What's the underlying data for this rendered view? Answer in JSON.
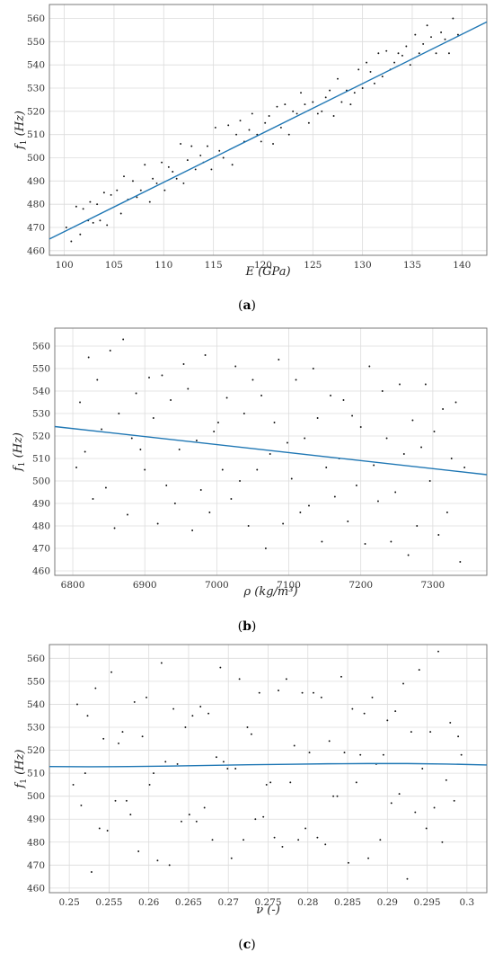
{
  "chart_data": [
    {
      "type": "scatter",
      "panel": "(a)",
      "panel_letter": "a",
      "xlabel_main": "E",
      "xlabel_unit": "(GPa)",
      "ylabel_main": "f",
      "ylabel_sub": "1",
      "ylabel_unit": "(Hz)",
      "xlim": [
        98.5,
        142.5
      ],
      "ylim": [
        458,
        566
      ],
      "xticks": [
        100,
        105,
        110,
        115,
        120,
        125,
        130,
        135,
        140
      ],
      "yticks": [
        460,
        470,
        480,
        490,
        500,
        510,
        520,
        530,
        540,
        550,
        560
      ],
      "grid": true,
      "points_x": [
        100.2,
        100.7,
        101.2,
        101.6,
        101.9,
        102.4,
        102.6,
        102.9,
        103.3,
        103.6,
        104.0,
        104.3,
        104.7,
        105.3,
        105.7,
        106.0,
        106.4,
        106.9,
        107.3,
        107.7,
        108.1,
        108.6,
        108.9,
        109.3,
        109.8,
        110.1,
        110.5,
        110.9,
        111.3,
        111.7,
        112.0,
        112.4,
        112.8,
        113.2,
        113.7,
        114.0,
        114.4,
        114.8,
        115.2,
        115.6,
        116.0,
        116.5,
        116.9,
        117.3,
        117.7,
        118.1,
        118.6,
        118.9,
        119.4,
        119.8,
        120.2,
        120.6,
        121.0,
        121.4,
        121.8,
        122.2,
        122.6,
        123.0,
        123.4,
        123.8,
        124.2,
        124.6,
        125.0,
        125.5,
        125.9,
        126.3,
        126.7,
        127.1,
        127.5,
        127.9,
        128.4,
        128.8,
        129.2,
        129.6,
        130.0,
        130.4,
        130.8,
        131.2,
        131.6,
        132.0,
        132.4,
        132.8,
        133.2,
        133.6,
        134.0,
        134.4,
        134.8,
        135.3,
        135.7,
        136.1,
        136.5,
        136.9,
        137.4,
        137.9,
        138.3,
        138.7,
        139.1,
        139.6
      ],
      "points_y": [
        470,
        464,
        479,
        467,
        478,
        473,
        481,
        472,
        480,
        473,
        485,
        471,
        484,
        486,
        476,
        492,
        482,
        490,
        483,
        486,
        497,
        481,
        491,
        489,
        498,
        486,
        496,
        494,
        491,
        506,
        489,
        499,
        505,
        495,
        501,
        498,
        505,
        495,
        513,
        503,
        500,
        514,
        497,
        510,
        516,
        507,
        512,
        519,
        510,
        507,
        515,
        518,
        506,
        522,
        513,
        523,
        510,
        520,
        519,
        528,
        523,
        515,
        524,
        519,
        520,
        526,
        529,
        518,
        534,
        524,
        529,
        523,
        528,
        538,
        530,
        541,
        537,
        532,
        545,
        535,
        546,
        538,
        541,
        545,
        544,
        548,
        540,
        553,
        545,
        549,
        557,
        552,
        545,
        554,
        551,
        545,
        560,
        553
      ],
      "fit_x": [
        98.5,
        142.5
      ],
      "fit_y": [
        465.0,
        558.5
      ],
      "line_color": "#1f77b4"
    },
    {
      "type": "scatter",
      "panel": "(b)",
      "panel_letter": "b",
      "xlabel_main": "ρ",
      "xlabel_unit": "(kg/m³)",
      "ylabel_main": "f",
      "ylabel_sub": "1",
      "ylabel_unit": "(Hz)",
      "xlim": [
        6775,
        7375
      ],
      "ylim": [
        458,
        568
      ],
      "xticks": [
        6800,
        6900,
        7000,
        7100,
        7200,
        7300
      ],
      "yticks": [
        460,
        470,
        480,
        490,
        500,
        510,
        520,
        530,
        540,
        550,
        560
      ],
      "grid": true,
      "points_x": [
        6805,
        6810,
        6817,
        6822,
        6828,
        6834,
        6840,
        6846,
        6852,
        6858,
        6864,
        6870,
        6876,
        6882,
        6888,
        6894,
        6900,
        6906,
        6912,
        6918,
        6924,
        6930,
        6936,
        6942,
        6948,
        6954,
        6960,
        6966,
        6972,
        6978,
        6984,
        6990,
        6996,
        7002,
        7008,
        7014,
        7020,
        7026,
        7032,
        7038,
        7044,
        7050,
        7056,
        7062,
        7068,
        7074,
        7080,
        7086,
        7092,
        7098,
        7104,
        7110,
        7116,
        7122,
        7128,
        7134,
        7140,
        7146,
        7152,
        7158,
        7164,
        7170,
        7176,
        7182,
        7188,
        7194,
        7200,
        7206,
        7212,
        7218,
        7224,
        7230,
        7236,
        7242,
        7248,
        7254,
        7260,
        7266,
        7272,
        7278,
        7284,
        7290,
        7296,
        7302,
        7308,
        7314,
        7320,
        7326,
        7332,
        7338,
        7344
      ],
      "points_y": [
        506,
        535,
        513,
        555,
        492,
        545,
        523,
        497,
        558,
        479,
        530,
        563,
        485,
        519,
        539,
        514,
        505,
        546,
        528,
        481,
        547,
        498,
        536,
        490,
        514,
        552,
        541,
        478,
        518,
        496,
        556,
        486,
        522,
        526,
        505,
        537,
        492,
        551,
        500,
        530,
        480,
        545,
        505,
        538,
        470,
        512,
        526,
        554,
        481,
        517,
        501,
        545,
        486,
        519,
        489,
        550,
        528,
        473,
        506,
        538,
        493,
        510,
        536,
        482,
        529,
        498,
        524,
        472,
        551,
        507,
        491,
        540,
        519,
        473,
        495,
        543,
        512,
        467,
        527,
        480,
        515,
        543,
        500,
        522,
        476,
        532,
        486,
        510,
        535,
        464,
        506
      ],
      "fit_x": [
        6775,
        7375
      ],
      "fit_y": [
        524.2,
        502.8
      ],
      "line_color": "#1f77b4"
    },
    {
      "type": "scatter",
      "panel": "(c)",
      "panel_letter": "c",
      "xlabel_main": "ν",
      "xlabel_unit": "(-)",
      "ylabel_main": "f",
      "ylabel_sub": "1",
      "ylabel_unit": "(Hz)",
      "xlim": [
        0.2475,
        0.3025
      ],
      "ylim": [
        458,
        566
      ],
      "xticks": [
        0.25,
        0.255,
        0.26,
        0.265,
        0.27,
        0.275,
        0.28,
        0.285,
        0.29,
        0.295,
        0.3
      ],
      "yticks": [
        460,
        470,
        480,
        490,
        500,
        510,
        520,
        530,
        540,
        550,
        560
      ],
      "grid": true,
      "points_x": [
        0.2505,
        0.251,
        0.2515,
        0.252,
        0.2523,
        0.2528,
        0.2533,
        0.2538,
        0.2543,
        0.2548,
        0.2553,
        0.2558,
        0.2562,
        0.2567,
        0.2572,
        0.2577,
        0.2582,
        0.2587,
        0.2592,
        0.2597,
        0.2601,
        0.2606,
        0.2611,
        0.2616,
        0.2621,
        0.2626,
        0.2631,
        0.2636,
        0.2641,
        0.2646,
        0.2651,
        0.2655,
        0.266,
        0.2665,
        0.267,
        0.2675,
        0.268,
        0.2685,
        0.269,
        0.2694,
        0.2699,
        0.2704,
        0.2709,
        0.2714,
        0.2719,
        0.2724,
        0.2729,
        0.2734,
        0.2739,
        0.2744,
        0.2748,
        0.2753,
        0.2758,
        0.2763,
        0.2768,
        0.2773,
        0.2778,
        0.2783,
        0.2788,
        0.2793,
        0.2797,
        0.2802,
        0.2807,
        0.2812,
        0.2817,
        0.2822,
        0.2827,
        0.2832,
        0.2837,
        0.2842,
        0.2846,
        0.2851,
        0.2856,
        0.2861,
        0.2866,
        0.2871,
        0.2876,
        0.2881,
        0.2886,
        0.2891,
        0.2895,
        0.29,
        0.2905,
        0.291,
        0.2915,
        0.292,
        0.2925,
        0.293,
        0.2935,
        0.294,
        0.2944,
        0.2949,
        0.2954,
        0.2959,
        0.2964,
        0.2969,
        0.2974,
        0.2979,
        0.2984,
        0.2989,
        0.2993
      ],
      "points_y": [
        505,
        540,
        496,
        510,
        535,
        467,
        547,
        486,
        525,
        485,
        554,
        498,
        523,
        528,
        498,
        492,
        541,
        476,
        526,
        543,
        505,
        510,
        472,
        558,
        515,
        470,
        538,
        514,
        489,
        530,
        492,
        535,
        489,
        539,
        495,
        536,
        481,
        517,
        556,
        515,
        512,
        473,
        512,
        551,
        481,
        530,
        527,
        490,
        545,
        491,
        505,
        506,
        482,
        546,
        478,
        551,
        506,
        522,
        481,
        545,
        486,
        519,
        545,
        482,
        543,
        479,
        524,
        500,
        500,
        552,
        519,
        471,
        538,
        506,
        518,
        536,
        473,
        543,
        514,
        481,
        518,
        533,
        497,
        537,
        501,
        549,
        464,
        528,
        493,
        555,
        512,
        486,
        528,
        495,
        563,
        480,
        507,
        532,
        498,
        526,
        518
      ],
      "fit_x": [
        0.2475,
        0.2525,
        0.2575,
        0.2625,
        0.2675,
        0.2725,
        0.2775,
        0.2825,
        0.2875,
        0.2925,
        0.2975,
        0.3025
      ],
      "fit_y": [
        512.9,
        512.8,
        512.9,
        513.1,
        513.4,
        513.7,
        513.9,
        514.1,
        514.2,
        514.2,
        514.0,
        513.6
      ],
      "line_color": "#1f77b4"
    }
  ]
}
